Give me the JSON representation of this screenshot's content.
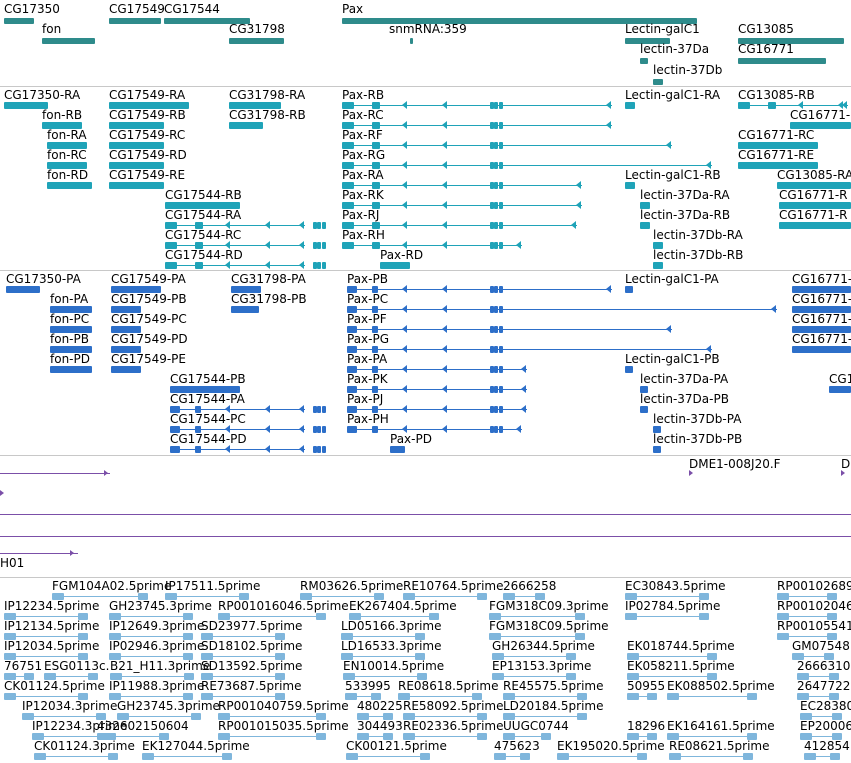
{
  "colors": {
    "gene": "#2e8b8b",
    "transcript_rna": "#1fa3b8",
    "transcript_protein": "#2d6fc9",
    "misc": "#7b4fa8",
    "est": "#7fb6dc",
    "separator": "#c8c8c8"
  },
  "tracks": {
    "gene_span": {
      "labels": [
        "CG17350",
        "CG17549",
        "CG17544",
        "fon",
        "CG31798",
        "Pax",
        "snmRNA:359",
        "Lectin-galC1",
        "lectin-37Da",
        "lectin-37Db",
        "CG13085",
        "CG16771"
      ]
    },
    "rna": {
      "labels": [
        "CG17350-RA",
        "CG17549-RA",
        "CG31798-RA",
        "Pax-RB",
        "Lectin-galC1-RA",
        "CG13085-RB",
        "fon-RB",
        "CG17549-RB",
        "CG31798-RB",
        "Pax-RC",
        "CG16771-",
        "fon-RA",
        "CG17549-RC",
        "Pax-RF",
        "CG16771-RC",
        "fon-RC",
        "CG17549-RD",
        "Pax-RG",
        "CG16771-RE",
        "fon-RD",
        "CG17549-RE",
        "Pax-RA",
        "Lectin-galC1-RB",
        "CG13085-RA",
        "CG17544-RB",
        "Pax-RK",
        "lectin-37Da-RA",
        "CG16771-R",
        "CG17544-RA",
        "Pax-RJ",
        "lectin-37Da-RB",
        "CG16771-R",
        "CG17544-RC",
        "Pax-RH",
        "lectin-37Db-RA",
        "CG17544-RD",
        "Pax-RD",
        "lectin-37Db-RB"
      ]
    },
    "protein": {
      "labels": [
        "CG17350-PA",
        "CG17549-PA",
        "CG31798-PA",
        "Pax-PB",
        "Lectin-galC1-PA",
        "CG16771-",
        "fon-PA",
        "CG17549-PB",
        "CG31798-PB",
        "Pax-PC",
        "CG16771-",
        "fon-PC",
        "CG17549-PC",
        "Pax-PF",
        "CG16771-",
        "fon-PB",
        "CG17549-PD",
        "Pax-PG",
        "CG16771-",
        "fon-PD",
        "CG17549-PE",
        "Pax-PA",
        "Lectin-galC1-PB",
        "CG17544-PB",
        "Pax-PK",
        "lectin-37Da-PA",
        "CG1",
        "CG17544-PA",
        "Pax-PJ",
        "lectin-37Da-PB",
        "CG17544-PC",
        "Pax-PH",
        "lectin-37Db-PA",
        "CG17544-PD",
        "Pax-PD",
        "lectin-37Db-PB"
      ]
    },
    "misc": {
      "labels": [
        "DME1-008J20.F",
        "D",
        "H01"
      ]
    },
    "est": {
      "labels": [
        "FGM104A02.5prime",
        "IP17511.5prime",
        "RM03626.5prime",
        "RE10764.5prime",
        "2666258",
        "EC30843.5prime",
        "RP00102689",
        "IP12234.5prime",
        "GH23745.3prime",
        "RP001016046.5prime",
        "EK267404.5prime",
        "FGM318C09.3prime",
        "IP02784.5prime",
        "RP00102046",
        "IP12134.5prime",
        "IP12649.3prime",
        "SD23977.5prime",
        "LD05166.3prime",
        "FGM318C09.5prime",
        "RP00105541",
        "IP12034.5prime",
        "IP02946.3prime",
        "SD18102.5prime",
        "LD16533.3prime",
        "GH26344.5prime",
        "EK018744.5prime",
        "GM07548",
        "76751",
        "ESG0113c.",
        "B21_H11.3prime",
        "SD13592.5prime",
        "EN10014.5prime",
        "EP13153.3prime",
        "EK058211.5prime",
        "2666310",
        "CK01124.5prime",
        "IP11988.3prime",
        "RE73687.5prime",
        "533995",
        "RE08618.5prime",
        "RE45575.5prime",
        "50955",
        "EK088502.5prime",
        "2647722",
        "IP12034.3prime",
        "GH23745.3prime",
        "RP001040759.5prime",
        "480225",
        "RE58092.5prime",
        "LD20184.5prime",
        "EC28380",
        "IP12234.3prime",
        "432602150604",
        "RP001015035.5prime",
        "304493",
        "RE02336.5prime",
        "UUGC0744",
        "18296",
        "EK164161.5prime",
        "EP20006",
        "CK01124.3prime",
        "EK127044.5prime",
        "CK00121.5prime",
        "475623",
        "EK195020.5prime",
        "RE08621.5prime",
        "412854"
      ]
    }
  }
}
